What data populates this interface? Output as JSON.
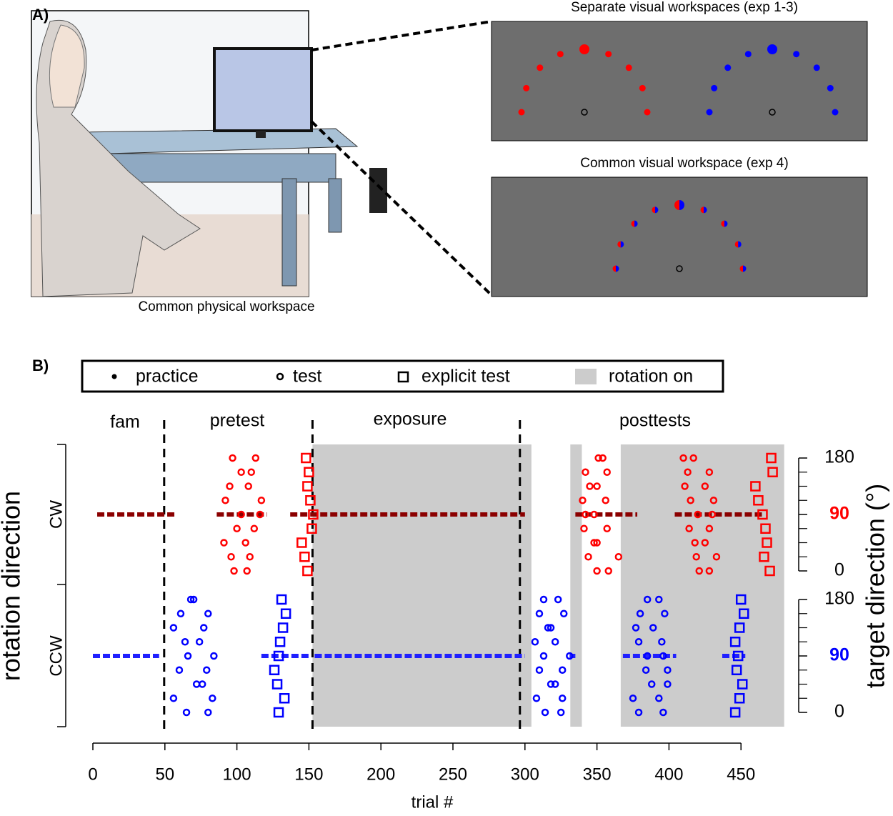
{
  "panel_a": {
    "label": "A)",
    "photo_caption": "Common physical workspace",
    "separate_title": "Separate visual workspaces (exp 1-3)",
    "common_title": "Common visual workspace (exp 4)"
  },
  "chart_data": {
    "type": "scatter",
    "label": "B)",
    "legend": [
      "practice",
      "test",
      "explicit test",
      "rotation on"
    ],
    "phases": [
      "fam",
      "pretest",
      "exposure",
      "posttests"
    ],
    "xlabel": "trial #",
    "ylabel": "rotation direction",
    "y2label": "target direction (°)",
    "xlim": [
      0,
      480
    ],
    "xticks": [
      0,
      50,
      100,
      150,
      200,
      250,
      300,
      350,
      400,
      450
    ],
    "y2lim": [
      0,
      180
    ],
    "y2ticks": [
      0,
      90,
      180
    ],
    "y2minor": [
      22.5,
      45,
      67.5,
      112.5,
      135,
      157.5
    ],
    "rows": [
      {
        "name": "CW",
        "color": "#ff0000"
      },
      {
        "name": "CCW",
        "color": "#0000ff"
      }
    ],
    "boundaries": [
      49.5,
      152.5,
      296.5
    ],
    "rotation_on": [
      [
        152.5,
        304.5
      ],
      [
        331.5,
        339.5
      ],
      [
        366.5,
        480
      ]
    ],
    "practice": [
      {
        "row": "CW",
        "color": "#8b0000",
        "ranges": [
          [
            3,
            57
          ],
          [
            86,
            121
          ],
          [
            137,
            300
          ],
          [
            335,
            378
          ],
          [
            404,
            465
          ]
        ]
      },
      {
        "row": "CCW",
        "color": "#2020ff",
        "ranges": [
          [
            0,
            46
          ],
          [
            117,
            150
          ],
          [
            154,
            300
          ],
          [
            331,
            335
          ],
          [
            368,
            405
          ],
          [
            437,
            453
          ]
        ]
      }
    ],
    "test": [
      {
        "row": "CW",
        "color": "#ff0000",
        "x": [
          97,
          113,
          103,
          110,
          95,
          108,
          92,
          117,
          103,
          116,
          100,
          112,
          91,
          106,
          96,
          109,
          98,
          107
        ],
        "y": [
          180,
          180,
          157.5,
          157.5,
          135,
          135,
          112.5,
          112.5,
          90,
          90,
          67.5,
          67.5,
          45,
          45,
          22.5,
          22.5,
          0,
          0
        ]
      },
      {
        "row": "CW",
        "color": "#ff0000",
        "x": [
          351,
          354,
          342,
          357,
          345,
          350,
          340,
          356,
          342,
          348,
          341,
          357,
          348,
          350,
          344,
          365,
          350,
          358
        ],
        "y": [
          180,
          180,
          157.5,
          157.5,
          135,
          135,
          112.5,
          112.5,
          90,
          90,
          67.5,
          67.5,
          45,
          45,
          22.5,
          22.5,
          0,
          0
        ]
      },
      {
        "row": "CW",
        "color": "#ff0000",
        "x": [
          410,
          417,
          413,
          428,
          411,
          425,
          415,
          431,
          420,
          430,
          414,
          428,
          418,
          425,
          419,
          433,
          421,
          428
        ],
        "y": [
          180,
          180,
          157.5,
          157.5,
          135,
          135,
          112.5,
          112.5,
          90,
          90,
          67.5,
          67.5,
          45,
          45,
          22.5,
          22.5,
          0,
          0
        ]
      },
      {
        "row": "CCW",
        "color": "#0000ff",
        "x": [
          68,
          70,
          61,
          80,
          56,
          77,
          64,
          74,
          66,
          84,
          60,
          79,
          72,
          76,
          56,
          83,
          65,
          80
        ],
        "y": [
          180,
          180,
          157.5,
          157.5,
          135,
          135,
          112.5,
          112.5,
          90,
          90,
          67.5,
          67.5,
          45,
          45,
          22.5,
          22.5,
          0,
          0
        ]
      },
      {
        "row": "CCW",
        "color": "#0000ff",
        "x": [
          313,
          323,
          310,
          327,
          316,
          318,
          307,
          321,
          313,
          331,
          310,
          326,
          318,
          321,
          308,
          326,
          314,
          325
        ],
        "y": [
          180,
          180,
          157.5,
          157.5,
          135,
          135,
          112.5,
          112.5,
          90,
          90,
          67.5,
          67.5,
          45,
          45,
          22.5,
          22.5,
          0,
          0
        ]
      },
      {
        "row": "CCW",
        "color": "#0000ff",
        "x": [
          385,
          393,
          380,
          397,
          377,
          389,
          379,
          395,
          385,
          396,
          384,
          399,
          388,
          399,
          375,
          393,
          379,
          396
        ],
        "y": [
          180,
          180,
          157.5,
          157.5,
          135,
          135,
          112.5,
          112.5,
          90,
          90,
          67.5,
          67.5,
          45,
          45,
          22.5,
          22.5,
          0,
          0
        ]
      }
    ],
    "explicit": [
      {
        "row": "CW",
        "color": "#ff0000",
        "x": [
          148,
          150,
          149,
          151,
          153,
          152,
          145,
          147,
          149
        ],
        "y": [
          180,
          157.5,
          135,
          112.5,
          90,
          67.5,
          45,
          22.5,
          0
        ]
      },
      {
        "row": "CW",
        "color": "#ff0000",
        "x": [
          471,
          472,
          460,
          462,
          465,
          467,
          468,
          466,
          470
        ],
        "y": [
          180,
          157.5,
          135,
          112.5,
          90,
          67.5,
          45,
          22.5,
          0
        ]
      },
      {
        "row": "CCW",
        "color": "#0000ff",
        "x": [
          131,
          134,
          132,
          130,
          129,
          126,
          128,
          133,
          129
        ],
        "y": [
          180,
          157.5,
          135,
          112.5,
          90,
          67.5,
          45,
          22.5,
          0
        ]
      },
      {
        "row": "CCW",
        "color": "#0000ff",
        "x": [
          450,
          452,
          449,
          446,
          448,
          447,
          451,
          449,
          446
        ],
        "y": [
          180,
          157.5,
          135,
          112.5,
          90,
          67.5,
          45,
          22.5,
          0
        ]
      }
    ]
  }
}
